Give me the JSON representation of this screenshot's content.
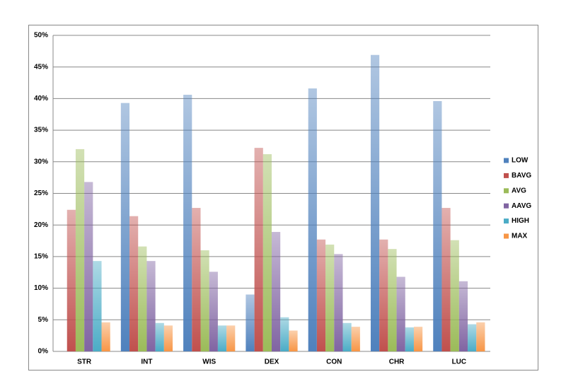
{
  "chart_data": {
    "type": "bar",
    "categories": [
      "STR",
      "INT",
      "WIS",
      "DEX",
      "CON",
      "CHR",
      "LUC"
    ],
    "series": [
      {
        "name": "LOW",
        "color": "#4f81bd",
        "values": [
          0,
          39.3,
          40.6,
          9,
          41.6,
          46.9,
          39.6
        ]
      },
      {
        "name": "BAVG",
        "color": "#c0504d",
        "values": [
          22.4,
          21.4,
          22.7,
          32.2,
          17.7,
          17.7,
          22.7
        ]
      },
      {
        "name": "AVG",
        "color": "#9bbb59",
        "values": [
          32,
          16.6,
          16,
          31.2,
          16.9,
          16.2,
          17.6
        ]
      },
      {
        "name": "AAVG",
        "color": "#8064a2",
        "values": [
          26.8,
          14.3,
          12.6,
          18.9,
          15.4,
          11.8,
          11.1
        ]
      },
      {
        "name": "HIGH",
        "color": "#4bacc6",
        "values": [
          14.3,
          4.5,
          4.1,
          5.4,
          4.5,
          3.8,
          4.3
        ]
      },
      {
        "name": "MAX",
        "color": "#f79646",
        "values": [
          4.6,
          4.1,
          4.1,
          3.3,
          3.9,
          3.9,
          4.6
        ]
      }
    ],
    "ylim": [
      0,
      50
    ],
    "yticks": [
      {
        "value": 0,
        "label": "0%"
      },
      {
        "value": 5,
        "label": "5%"
      },
      {
        "value": 10,
        "label": "10%"
      },
      {
        "value": 15,
        "label": "15%"
      },
      {
        "value": 20,
        "label": "20%"
      },
      {
        "value": 25,
        "label": "25%"
      },
      {
        "value": 30,
        "label": "30%"
      },
      {
        "value": 35,
        "label": "35%"
      },
      {
        "value": 40,
        "label": "40%"
      },
      {
        "value": 45,
        "label": "45%"
      },
      {
        "value": 50,
        "label": "50%"
      }
    ],
    "grid": true,
    "legend": "right"
  }
}
